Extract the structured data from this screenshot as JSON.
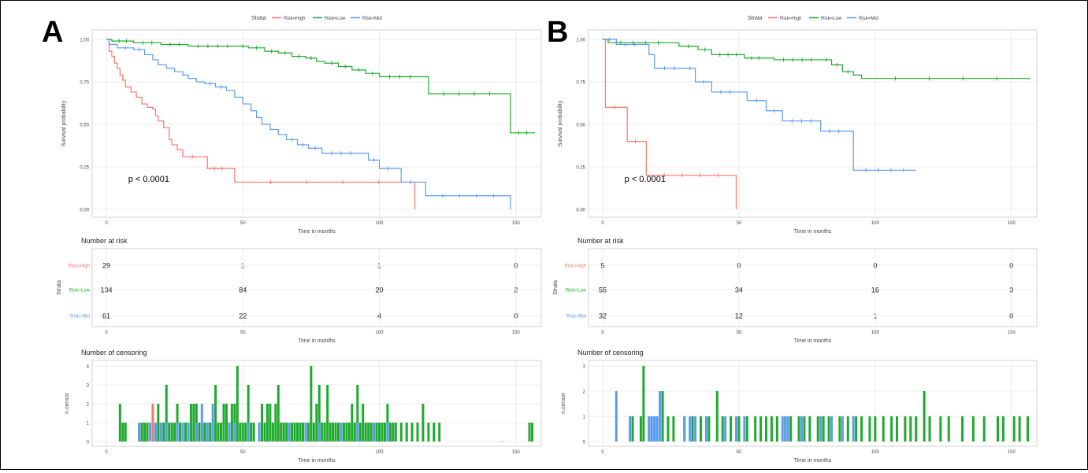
{
  "panels": [
    {
      "letter": "A",
      "legend": {
        "title": "Strata",
        "entries": [
          "Risk=High",
          "Risk=Low",
          "Risk=Mid"
        ]
      },
      "survival": {
        "ylabel": "Survival probability",
        "xlabel": "Time in months",
        "yticks": [
          "0.00",
          "0.25",
          "0.50",
          "0.75",
          "1.00"
        ],
        "xticks": [
          "0",
          "50",
          "100",
          "150"
        ],
        "pvalue": "p < 0.0001"
      },
      "risk": {
        "title": "Number at risk",
        "ylabel": "Strata",
        "xlabel": "Time in months",
        "xticks": [
          "0",
          "50",
          "100",
          "150"
        ],
        "rows": [
          {
            "label": "Risk=High",
            "values": [
              "29",
              "1",
              "1",
              "0"
            ]
          },
          {
            "label": "Risk=Low",
            "values": [
              "134",
              "84",
              "20",
              "2"
            ]
          },
          {
            "label": "Risk=Mid",
            "values": [
              "61",
              "22",
              "4",
              "0"
            ]
          }
        ]
      },
      "censor": {
        "title": "Number of censoring",
        "ylabel": "n.censor",
        "xlabel": "Time in months",
        "yticks": [
          "0",
          "1",
          "2",
          "3",
          "4"
        ],
        "xticks": [
          "0",
          "50",
          "100",
          "150"
        ]
      }
    },
    {
      "letter": "B",
      "legend": {
        "title": "Strata",
        "entries": [
          "Risk=High",
          "Risk=Low",
          "Risk=Mid"
        ]
      },
      "survival": {
        "ylabel": "Survival probability",
        "xlabel": "Time in months",
        "yticks": [
          "0.00",
          "0.25",
          "0.50",
          "0.75",
          "1.00"
        ],
        "xticks": [
          "0",
          "50",
          "100",
          "150"
        ],
        "pvalue": "p < 0.0001"
      },
      "risk": {
        "title": "Number at risk",
        "ylabel": "Strata",
        "xlabel": "Time in months",
        "xticks": [
          "0",
          "50",
          "100",
          "150"
        ],
        "rows": [
          {
            "label": "Risk=High",
            "values": [
              "5",
              "0",
              "0",
              "0"
            ]
          },
          {
            "label": "Risk=Low",
            "values": [
              "55",
              "34",
              "16",
              "3"
            ]
          },
          {
            "label": "Risk=Mid",
            "values": [
              "32",
              "12",
              "1",
              "0"
            ]
          }
        ]
      },
      "censor": {
        "title": "Number of censoring",
        "ylabel": "n.censor",
        "xlabel": "Time in months",
        "yticks": [
          "0",
          "1",
          "2",
          "3"
        ],
        "xticks": [
          "0",
          "50",
          "100",
          "150"
        ]
      }
    }
  ],
  "colors": {
    "high": "#f8766d",
    "low": "#1eaa2c",
    "mid": "#5b9bf0",
    "grid": "#e6e6e6",
    "frame": "#c8c8c8",
    "text": "#444444"
  },
  "chart_data": [
    {
      "type": "line",
      "panel": "A",
      "xlabel": "Time in months",
      "ylabel": "Survival probability",
      "xlim": [
        0,
        157
      ],
      "ylim": [
        0,
        1
      ],
      "annotation": "p < 0.0001",
      "series": [
        {
          "name": "Risk=High",
          "steps": [
            [
              0,
              1
            ],
            [
              1,
              0.93
            ],
            [
              2,
              0.9
            ],
            [
              3,
              0.86
            ],
            [
              4,
              0.83
            ],
            [
              5,
              0.79
            ],
            [
              6,
              0.76
            ],
            [
              7,
              0.72
            ],
            [
              9,
              0.69
            ],
            [
              11,
              0.66
            ],
            [
              13,
              0.62
            ],
            [
              15,
              0.6
            ],
            [
              17,
              0.59
            ],
            [
              18,
              0.55
            ],
            [
              19,
              0.52
            ],
            [
              21,
              0.48
            ],
            [
              23,
              0.41
            ],
            [
              24,
              0.38
            ],
            [
              26,
              0.35
            ],
            [
              28,
              0.31
            ],
            [
              35,
              0.31
            ],
            [
              37,
              0.24
            ],
            [
              45,
              0.24
            ],
            [
              47,
              0.16
            ],
            [
              113,
              0.16
            ],
            [
              113,
              0
            ]
          ]
        },
        {
          "name": "Risk=Low",
          "steps": [
            [
              0,
              1
            ],
            [
              2,
              0.99
            ],
            [
              10,
              0.98
            ],
            [
              20,
              0.97
            ],
            [
              30,
              0.96
            ],
            [
              48,
              0.96
            ],
            [
              52,
              0.95
            ],
            [
              58,
              0.93
            ],
            [
              63,
              0.92
            ],
            [
              68,
              0.9
            ],
            [
              73,
              0.89
            ],
            [
              77,
              0.87
            ],
            [
              80,
              0.86
            ],
            [
              85,
              0.84
            ],
            [
              90,
              0.82
            ],
            [
              95,
              0.8
            ],
            [
              100,
              0.78
            ],
            [
              115,
              0.78
            ],
            [
              118,
              0.68
            ],
            [
              146,
              0.68
            ],
            [
              148,
              0.45
            ],
            [
              157,
              0.45
            ]
          ]
        },
        {
          "name": "Risk=Mid",
          "steps": [
            [
              0,
              1
            ],
            [
              1,
              0.97
            ],
            [
              4,
              0.95
            ],
            [
              10,
              0.94
            ],
            [
              14,
              0.91
            ],
            [
              17,
              0.88
            ],
            [
              19,
              0.85
            ],
            [
              22,
              0.83
            ],
            [
              25,
              0.81
            ],
            [
              28,
              0.79
            ],
            [
              30,
              0.77
            ],
            [
              33,
              0.75
            ],
            [
              36,
              0.74
            ],
            [
              40,
              0.72
            ],
            [
              44,
              0.7
            ],
            [
              47,
              0.66
            ],
            [
              50,
              0.62
            ],
            [
              53,
              0.58
            ],
            [
              55,
              0.54
            ],
            [
              57,
              0.5
            ],
            [
              60,
              0.47
            ],
            [
              63,
              0.44
            ],
            [
              66,
              0.41
            ],
            [
              70,
              0.38
            ],
            [
              74,
              0.36
            ],
            [
              79,
              0.33
            ],
            [
              93,
              0.33
            ],
            [
              96,
              0.29
            ],
            [
              100,
              0.24
            ],
            [
              106,
              0.24
            ],
            [
              108,
              0.16
            ],
            [
              115,
              0.16
            ],
            [
              117,
              0.08
            ],
            [
              148,
              0.08
            ],
            [
              148,
              0
            ]
          ]
        }
      ]
    },
    {
      "type": "line",
      "panel": "B",
      "xlabel": "Time in months",
      "ylabel": "Survival probability",
      "xlim": [
        0,
        157
      ],
      "ylim": [
        0,
        1
      ],
      "annotation": "p < 0.0001",
      "series": [
        {
          "name": "Risk=High",
          "steps": [
            [
              0,
              1
            ],
            [
              1,
              0.6
            ],
            [
              8,
              0.6
            ],
            [
              9,
              0.4
            ],
            [
              15,
              0.4
            ],
            [
              16,
              0.2
            ],
            [
              49,
              0.2
            ],
            [
              49,
              0
            ]
          ]
        },
        {
          "name": "Risk=Low",
          "steps": [
            [
              0,
              1
            ],
            [
              2,
              0.98
            ],
            [
              25,
              0.98
            ],
            [
              28,
              0.96
            ],
            [
              35,
              0.94
            ],
            [
              40,
              0.91
            ],
            [
              52,
              0.89
            ],
            [
              60,
              0.89
            ],
            [
              63,
              0.88
            ],
            [
              80,
              0.88
            ],
            [
              84,
              0.85
            ],
            [
              88,
              0.81
            ],
            [
              92,
              0.79
            ],
            [
              95,
              0.77
            ],
            [
              157,
              0.77
            ]
          ]
        },
        {
          "name": "Risk=Mid",
          "steps": [
            [
              0,
              1
            ],
            [
              5,
              0.97
            ],
            [
              15,
              0.97
            ],
            [
              17,
              0.91
            ],
            [
              19,
              0.83
            ],
            [
              30,
              0.83
            ],
            [
              34,
              0.75
            ],
            [
              40,
              0.69
            ],
            [
              50,
              0.69
            ],
            [
              53,
              0.64
            ],
            [
              60,
              0.58
            ],
            [
              66,
              0.52
            ],
            [
              80,
              0.46
            ],
            [
              90,
              0.46
            ],
            [
              92,
              0.23
            ],
            [
              115,
              0.23
            ]
          ]
        }
      ]
    },
    {
      "type": "bar",
      "panel": "A",
      "xlabel": "Time in months",
      "ylabel": "n.censor",
      "xlim": [
        0,
        157
      ],
      "ylim": [
        0,
        4
      ],
      "series": [
        {
          "name": "Risk=High",
          "x": [
            17
          ],
          "values": [
            2
          ]
        },
        {
          "name": "Risk=Low",
          "x": [
            5,
            6,
            7,
            12,
            13,
            14,
            15,
            18,
            19,
            20,
            21,
            22,
            23,
            24,
            25,
            26,
            27,
            29,
            30,
            31,
            32,
            33,
            34,
            35,
            36,
            37,
            38,
            39,
            40,
            41,
            42,
            43,
            44,
            45,
            46,
            47,
            48,
            49,
            50,
            51,
            52,
            53,
            54,
            56,
            57,
            58,
            59,
            60,
            61,
            62,
            63,
            64,
            65,
            66,
            67,
            68,
            69,
            70,
            71,
            72,
            73,
            74,
            75,
            76,
            77,
            78,
            79,
            80,
            81,
            82,
            83,
            84,
            85,
            86,
            87,
            88,
            89,
            90,
            91,
            92,
            93,
            94,
            95,
            96,
            97,
            98,
            99,
            100,
            101,
            102,
            103,
            104,
            105,
            106,
            108,
            110,
            112,
            114,
            116,
            118,
            120,
            122,
            155,
            156
          ],
          "values": [
            2,
            1,
            1,
            1,
            1,
            1,
            1,
            1,
            2,
            1,
            1,
            3,
            1,
            1,
            1,
            2,
            1,
            1,
            1,
            2,
            2,
            2,
            1,
            1,
            1,
            1,
            1,
            1,
            3,
            1,
            1,
            2,
            2,
            1,
            2,
            2,
            4,
            1,
            1,
            1,
            3,
            1,
            1,
            1,
            2,
            1,
            2,
            2,
            1,
            2,
            3,
            1,
            1,
            1,
            1,
            1,
            1,
            1,
            1,
            1,
            1,
            1,
            4,
            1,
            2,
            3,
            1,
            1,
            3,
            1,
            1,
            1,
            1,
            1,
            1,
            1,
            1,
            2,
            1,
            3,
            1,
            2,
            1,
            1,
            1,
            1,
            1,
            1,
            1,
            1,
            2,
            1,
            1,
            1,
            1,
            1,
            1,
            1,
            2,
            1,
            1,
            1,
            1,
            1
          ]
        },
        {
          "name": "Risk=Mid",
          "x": [
            12,
            16,
            18,
            20,
            22,
            26,
            28,
            30,
            33,
            35,
            37,
            39,
            45,
            47,
            52,
            56,
            67,
            73,
            78,
            86,
            92,
            98,
            103,
            145
          ],
          "values": [
            1,
            1,
            1,
            1,
            1,
            1,
            1,
            1,
            1,
            2,
            1,
            2,
            1,
            1,
            1,
            1,
            1,
            1,
            1,
            1,
            1,
            1,
            1,
            0
          ]
        }
      ]
    },
    {
      "type": "bar",
      "panel": "B",
      "xlabel": "Time in months",
      "ylabel": "n.censor",
      "xlim": [
        0,
        157
      ],
      "ylim": [
        0,
        3
      ],
      "series": [
        {
          "name": "Risk=Low",
          "x": [
            11,
            14,
            15,
            17,
            19,
            22,
            24,
            26,
            30,
            33,
            36,
            39,
            42,
            44,
            47,
            50,
            53,
            56,
            58,
            60,
            62,
            64,
            67,
            69,
            72,
            74,
            76,
            79,
            81,
            83,
            87,
            90,
            93,
            95,
            98,
            100,
            103,
            106,
            108,
            111,
            113,
            115,
            118,
            120,
            124,
            127,
            132,
            136,
            140,
            145,
            147,
            151,
            153,
            156
          ],
          "values": [
            1,
            1,
            3,
            1,
            1,
            2,
            1,
            1,
            1,
            1,
            1,
            1,
            2,
            1,
            1,
            1,
            1,
            1,
            1,
            1,
            1,
            1,
            1,
            1,
            1,
            1,
            1,
            1,
            1,
            1,
            1,
            1,
            1,
            1,
            1,
            1,
            1,
            1,
            1,
            1,
            1,
            1,
            2,
            1,
            1,
            1,
            1,
            1,
            1,
            1,
            1,
            1,
            1,
            1
          ]
        },
        {
          "name": "Risk=Mid",
          "x": [
            5,
            10,
            17,
            18,
            19,
            20,
            21,
            30,
            32,
            34,
            38,
            45,
            49,
            52,
            66,
            67,
            68,
            73,
            80,
            84,
            88,
            92
          ],
          "values": [
            2,
            1,
            1,
            1,
            1,
            1,
            2,
            1,
            1,
            1,
            1,
            1,
            1,
            1,
            1,
            1,
            1,
            1,
            1,
            1,
            1,
            1
          ]
        }
      ]
    }
  ]
}
